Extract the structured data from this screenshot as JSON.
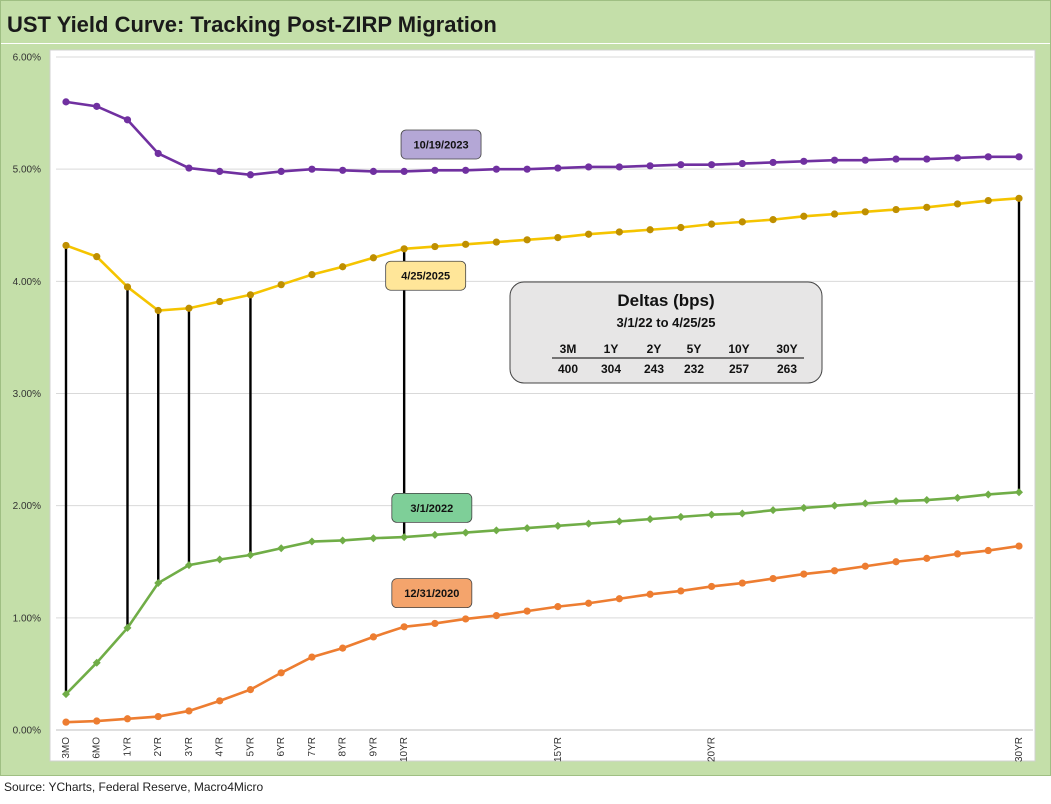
{
  "title": "UST Yield Curve: Tracking Post-ZIRP Migration",
  "source": "Source: YCharts, Federal Reserve, Macro4Micro",
  "chart_data": {
    "type": "line",
    "title": "UST Yield Curve: Tracking Post-ZIRP Migration",
    "ylim": [
      0,
      6
    ],
    "yticks": [
      "0.00%",
      "1.00%",
      "2.00%",
      "3.00%",
      "4.00%",
      "5.00%",
      "6.00%"
    ],
    "x": [
      0.25,
      0.5,
      1,
      2,
      3,
      4,
      5,
      6,
      7,
      8,
      9,
      10,
      11,
      12,
      13,
      14,
      15,
      16,
      17,
      18,
      19,
      20,
      21,
      22,
      23,
      24,
      25,
      26,
      27,
      28,
      29,
      30
    ],
    "xtick_labels": [
      {
        "x": 0.25,
        "label": "3MO"
      },
      {
        "x": 0.5,
        "label": "6MO"
      },
      {
        "x": 1,
        "label": "1YR"
      },
      {
        "x": 2,
        "label": "2YR"
      },
      {
        "x": 3,
        "label": "3YR"
      },
      {
        "x": 4,
        "label": "4YR"
      },
      {
        "x": 5,
        "label": "5YR"
      },
      {
        "x": 6,
        "label": "6YR"
      },
      {
        "x": 7,
        "label": "7YR"
      },
      {
        "x": 8,
        "label": "8YR"
      },
      {
        "x": 9,
        "label": "9YR"
      },
      {
        "x": 10,
        "label": "10YR"
      },
      {
        "x": 15,
        "label": "15YR"
      },
      {
        "x": 20,
        "label": "20YR"
      },
      {
        "x": 30,
        "label": "30YR"
      }
    ],
    "series": [
      {
        "name": "10/19/2023",
        "color": "#7030a0",
        "label_fill": "#b4a7d6",
        "marker": "circle",
        "label_at": [
          12.2,
          5.22
        ],
        "values": [
          5.6,
          5.56,
          5.44,
          5.14,
          5.01,
          4.98,
          4.95,
          4.98,
          5.0,
          4.99,
          4.98,
          4.98,
          4.99,
          4.99,
          5.0,
          5.0,
          5.01,
          5.02,
          5.02,
          5.03,
          5.04,
          5.04,
          5.05,
          5.06,
          5.07,
          5.08,
          5.08,
          5.09,
          5.09,
          5.1,
          5.11,
          5.11
        ]
      },
      {
        "name": "4/25/2025",
        "color": "#f5c400",
        "marker_color": "#bf8f00",
        "label_fill": "#ffe699",
        "marker": "circle",
        "label_at": [
          11.7,
          4.05
        ],
        "values": [
          4.32,
          4.22,
          3.95,
          3.74,
          3.76,
          3.82,
          3.88,
          3.97,
          4.06,
          4.13,
          4.21,
          4.29,
          4.31,
          4.33,
          4.35,
          4.37,
          4.39,
          4.42,
          4.44,
          4.46,
          4.48,
          4.51,
          4.53,
          4.55,
          4.58,
          4.6,
          4.62,
          4.64,
          4.66,
          4.69,
          4.72,
          4.74
        ]
      },
      {
        "name": "3/1/2022",
        "color": "#70ad47",
        "marker_color": "#70ad47",
        "label_fill": "#7ecf98",
        "marker": "diamond",
        "label_at": [
          11.9,
          1.98
        ],
        "values": [
          0.32,
          0.6,
          0.91,
          1.31,
          1.47,
          1.52,
          1.56,
          1.62,
          1.68,
          1.69,
          1.71,
          1.72,
          1.74,
          1.76,
          1.78,
          1.8,
          1.82,
          1.84,
          1.86,
          1.88,
          1.9,
          1.92,
          1.93,
          1.96,
          1.98,
          2.0,
          2.02,
          2.04,
          2.05,
          2.07,
          2.1,
          2.12
        ]
      },
      {
        "name": "12/31/2020",
        "color": "#ed7d31",
        "marker_color": "#ed7d31",
        "label_fill": "#f4a46c",
        "marker": "circle",
        "label_at": [
          11.9,
          1.22
        ],
        "values": [
          0.07,
          0.08,
          0.1,
          0.12,
          0.17,
          0.26,
          0.36,
          0.51,
          0.65,
          0.73,
          0.83,
          0.92,
          0.95,
          0.99,
          1.02,
          1.06,
          1.1,
          1.13,
          1.17,
          1.21,
          1.24,
          1.28,
          1.31,
          1.35,
          1.39,
          1.42,
          1.46,
          1.5,
          1.53,
          1.57,
          1.6,
          1.64
        ]
      }
    ],
    "delta_lines": [
      {
        "x": 0.25,
        "from": 0.32,
        "to": 4.32
      },
      {
        "x": 1,
        "from": 0.91,
        "to": 3.95
      },
      {
        "x": 2,
        "from": 1.31,
        "to": 3.74
      },
      {
        "x": 3,
        "from": 1.47,
        "to": 3.76
      },
      {
        "x": 5,
        "from": 1.56,
        "to": 3.88
      },
      {
        "x": 10,
        "from": 1.72,
        "to": 4.29
      },
      {
        "x": 30,
        "from": 2.12,
        "to": 4.74
      }
    ],
    "deltas_box": {
      "title": "Deltas (bps)",
      "subtitle": "3/1/22  to 4/25/25",
      "headers": [
        "3M",
        "1Y",
        "2Y",
        "5Y",
        "10Y",
        "30Y"
      ],
      "values": [
        "400",
        "304",
        "243",
        "232",
        "257",
        "263"
      ]
    }
  }
}
